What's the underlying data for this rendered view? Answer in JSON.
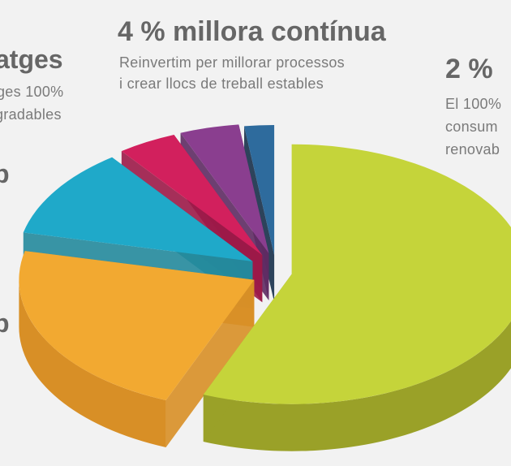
{
  "colors": {
    "background": "#f2f2f2",
    "heading": "#666666",
    "body": "#7a7a7a"
  },
  "labels": {
    "left_top_heading": "atges",
    "left_top_line1": "ges 100%",
    "left_top_line2": "gradables",
    "left_mid_letter": "p",
    "left_low_letter": "p",
    "center_heading": "4 % millora contínua",
    "center_line1": "Reinvertim per millorar processos",
    "center_line2": "i crear llocs de treball estables",
    "right_heading": "2 %",
    "right_line1": "El 100%",
    "right_line2": "consum",
    "right_line3": "renovab"
  },
  "chart_data": {
    "type": "pie",
    "style": "3d-exploded",
    "slices": [
      {
        "value": 55,
        "color": "#c5d43a",
        "side_color": "#9aa128"
      },
      {
        "value": 22,
        "color": "#f2a931",
        "side_color": "#d88f26"
      },
      {
        "value": 11,
        "color": "#1fa9c9",
        "side_color": "#24899c"
      },
      {
        "value": 4,
        "color": "#d2205d",
        "side_color": "#9c1a48"
      },
      {
        "value": 4,
        "color": "#8a3e8f",
        "side_color": "#5e2b63"
      },
      {
        "value": 2,
        "color": "#2e6b9d",
        "side_color": "#17304a"
      }
    ]
  }
}
